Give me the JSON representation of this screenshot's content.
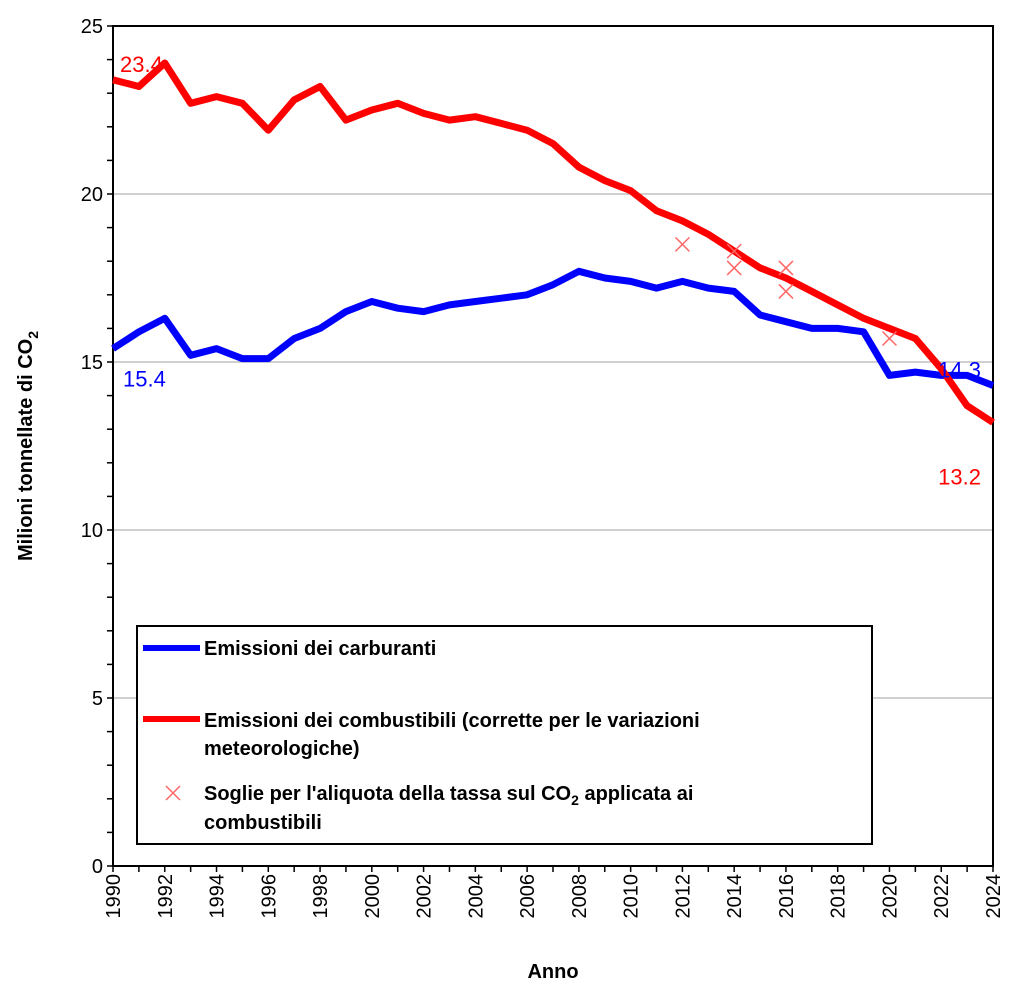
{
  "chart_data": {
    "type": "line",
    "title": "",
    "xlabel": "Anno",
    "ylabel": "Milioni tonnellate di CO",
    "ylabel_subscript": "2",
    "xlim": [
      1990,
      2024
    ],
    "ylim": [
      0,
      25
    ],
    "y_ticks": [
      0,
      5,
      10,
      15,
      20,
      25
    ],
    "y_tick_labels": [
      "0",
      "5",
      "10",
      "15",
      "20",
      "25"
    ],
    "y_minor_step": 1,
    "x_ticks": [
      1990,
      1992,
      1994,
      1996,
      1998,
      2000,
      2002,
      2004,
      2006,
      2008,
      2010,
      2012,
      2014,
      2016,
      2018,
      2020,
      2022,
      2024
    ],
    "x_tick_labels": [
      "1990",
      "1992",
      "1994",
      "1996",
      "1998",
      "2000",
      "2002",
      "2004",
      "2006",
      "2008",
      "2010",
      "2012",
      "2014",
      "2016",
      "2018",
      "2020",
      "2022",
      "2024"
    ],
    "grid": "horizontal-major",
    "legend_placement": "bottom-left",
    "x": [
      1990,
      1991,
      1992,
      1993,
      1994,
      1995,
      1996,
      1997,
      1998,
      1999,
      2000,
      2001,
      2002,
      2003,
      2004,
      2005,
      2006,
      2007,
      2008,
      2009,
      2010,
      2011,
      2012,
      2013,
      2014,
      2015,
      2016,
      2017,
      2018,
      2019,
      2020,
      2021,
      2022,
      2023,
      2024
    ],
    "series": [
      {
        "name": "Emissioni dei carburanti",
        "color": "#0000ff",
        "values": [
          15.4,
          15.9,
          16.3,
          15.2,
          15.4,
          15.1,
          15.1,
          15.7,
          16.0,
          16.5,
          16.8,
          16.6,
          16.5,
          16.7,
          16.8,
          16.9,
          17.0,
          17.3,
          17.7,
          17.5,
          17.4,
          17.2,
          17.4,
          17.2,
          17.1,
          16.4,
          16.2,
          16.0,
          16.0,
          15.9,
          14.6,
          14.7,
          14.6,
          14.6,
          14.3
        ]
      },
      {
        "name": "Emissioni dei combustibili (corrette per le variazioni meteorologiche)",
        "legend_lines": [
          "Emissioni dei combustibili (corrette per le variazioni",
          "meteorologiche)"
        ],
        "color": "#ff0000",
        "values": [
          23.4,
          23.2,
          23.9,
          22.7,
          22.9,
          22.7,
          21.9,
          22.8,
          23.2,
          22.2,
          22.5,
          22.7,
          22.4,
          22.2,
          22.3,
          22.1,
          21.9,
          21.5,
          20.8,
          20.4,
          20.1,
          19.5,
          19.2,
          18.8,
          18.3,
          17.8,
          17.5,
          17.1,
          16.7,
          16.3,
          16.0,
          15.7,
          14.8,
          13.7,
          13.2
        ]
      }
    ],
    "markers": {
      "name": "Soglie per l'aliquota della tassa sul CO2 applicata ai combustibili",
      "legend_line1_pre": "Soglie per l'aliquota della tassa sul CO",
      "legend_line1_sub": "2",
      "legend_line1_post": " applicata ai",
      "legend_line2": "combustibili",
      "color": "#ff6666",
      "points": [
        {
          "x": 2012,
          "y": 18.5
        },
        {
          "x": 2014,
          "y": 18.3
        },
        {
          "x": 2014,
          "y": 17.8
        },
        {
          "x": 2016,
          "y": 17.8
        },
        {
          "x": 2016,
          "y": 17.1
        },
        {
          "x": 2020,
          "y": 15.7
        }
      ]
    },
    "annotations": [
      {
        "text": "23.4",
        "series": 1,
        "x": 1990,
        "anchor": "above",
        "color": "#ff0000"
      },
      {
        "text": "15.4",
        "series": 0,
        "x": 1990,
        "anchor": "below",
        "color": "#0000ff"
      },
      {
        "text": "14.3",
        "series": 0,
        "x": 2024,
        "anchor": "above-left",
        "color": "#0000ff"
      },
      {
        "text": "13.2",
        "series": 1,
        "x": 2024,
        "anchor": "below-left",
        "color": "#ff0000"
      }
    ]
  }
}
